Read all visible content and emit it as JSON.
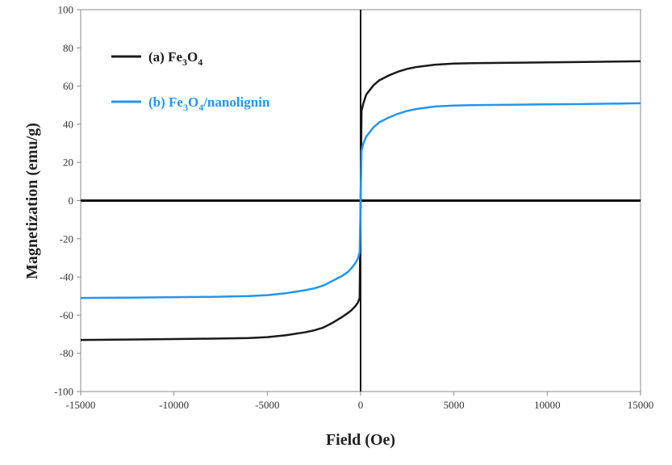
{
  "chart_data": {
    "type": "line",
    "xlabel": "Field (Oe)",
    "ylabel": "Magnetization (emu/g)",
    "xlim": [
      -15000,
      15000
    ],
    "ylim": [
      -100,
      100
    ],
    "x_ticks": [
      -15000,
      -10000,
      -5000,
      0,
      5000,
      10000,
      15000
    ],
    "y_ticks": [
      -100,
      -80,
      -60,
      -40,
      -20,
      0,
      20,
      40,
      60,
      80,
      100
    ],
    "x_tick_labels": [
      "-15000",
      "-10000",
      "-5000",
      "0",
      "5000",
      "10000",
      "15000"
    ],
    "y_tick_labels": [
      "-100",
      "-80",
      "-60",
      "-40",
      "-20",
      "0",
      "20",
      "40",
      "60",
      "80",
      "100"
    ],
    "grid": false,
    "legend_position": "top-left",
    "series": [
      {
        "label_prefix": "(a) Fe",
        "label_sub1": "3",
        "label_mid": "O",
        "label_sub2": "4",
        "label_suffix": "",
        "color": "#1a1a1a",
        "x": [
          -15000,
          -12000,
          -10000,
          -8000,
          -6000,
          -5000,
          -4000,
          -3000,
          -2500,
          -2000,
          -1500,
          -1000,
          -700,
          -500,
          -300,
          -150,
          -50,
          0,
          50,
          150,
          300,
          500,
          700,
          1000,
          1500,
          2000,
          2500,
          3000,
          4000,
          5000,
          6000,
          8000,
          10000,
          12000,
          15000
        ],
        "y": [
          -73,
          -72.7,
          -72.5,
          -72.3,
          -72,
          -71.5,
          -70.5,
          -69,
          -68,
          -66.5,
          -64,
          -61,
          -59,
          -57.5,
          -55.5,
          -53.5,
          -51,
          0,
          47,
          51,
          55.5,
          58,
          60.5,
          63,
          65.5,
          67.5,
          69,
          70,
          71.2,
          71.8,
          72,
          72.2,
          72.4,
          72.6,
          73
        ]
      },
      {
        "label_prefix": "(b) Fe",
        "label_sub1": "3",
        "label_mid": "O",
        "label_sub2": "4",
        "label_suffix": "/nanolignin",
        "color": "#2196f3",
        "x": [
          -15000,
          -12000,
          -10000,
          -8000,
          -6000,
          -5000,
          -4000,
          -3000,
          -2500,
          -2000,
          -1500,
          -1000,
          -700,
          -500,
          -300,
          -150,
          -50,
          0,
          50,
          150,
          300,
          500,
          700,
          1000,
          1500,
          2000,
          2500,
          3000,
          4000,
          5000,
          6000,
          8000,
          10000,
          12000,
          15000
        ],
        "y": [
          -51,
          -50.8,
          -50.6,
          -50.4,
          -50,
          -49.5,
          -48.5,
          -47,
          -46,
          -44.5,
          -42,
          -39.5,
          -37.5,
          -35.5,
          -33,
          -30.5,
          -27,
          0,
          26,
          30,
          33.5,
          36,
          38.5,
          41,
          43.5,
          45.5,
          47,
          48,
          49.3,
          49.8,
          50,
          50.2,
          50.4,
          50.6,
          51
        ]
      }
    ]
  }
}
